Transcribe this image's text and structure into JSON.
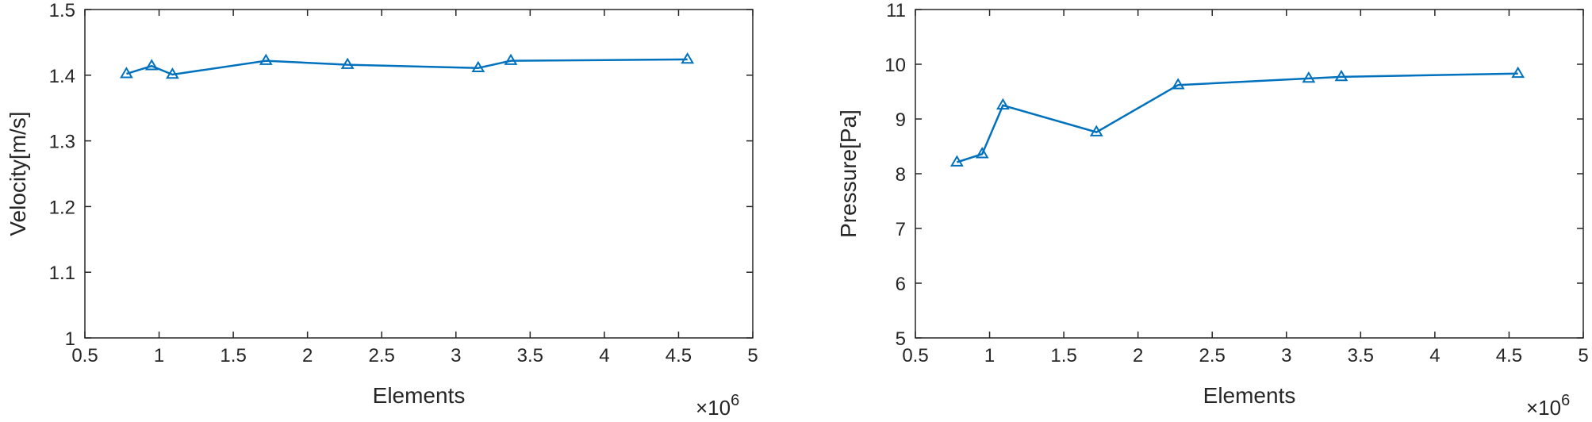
{
  "chart_data": [
    {
      "type": "line",
      "title": "",
      "xlabel": "Elements",
      "ylabel": "Velocity[m/s]",
      "x_multiplier_label": "×10",
      "x_multiplier_exponent": "6",
      "xlim": [
        0.5,
        5
      ],
      "ylim": [
        1,
        1.5
      ],
      "xticks": [
        0.5,
        1,
        1.5,
        2,
        2.5,
        3,
        3.5,
        4,
        4.5,
        5
      ],
      "xtick_labels": [
        "0.5",
        "1",
        "1.5",
        "2",
        "2.5",
        "3",
        "3.5",
        "4",
        "4.5",
        "5"
      ],
      "yticks": [
        1,
        1.1,
        1.2,
        1.3,
        1.4,
        1.5
      ],
      "ytick_labels": [
        "1",
        "1.1",
        "1.2",
        "1.3",
        "1.4",
        "1.5"
      ],
      "grid": false,
      "marker": "triangle",
      "color": "#0072BD",
      "series": [
        {
          "x": [
            0.78,
            0.95,
            1.09,
            1.72,
            2.27,
            3.15,
            3.37,
            4.56
          ],
          "y": [
            1.402,
            1.414,
            1.401,
            1.422,
            1.416,
            1.411,
            1.422,
            1.424
          ]
        }
      ]
    },
    {
      "type": "line",
      "title": "",
      "xlabel": "Elements",
      "ylabel": "Pressure[Pa]",
      "x_multiplier_label": "×10",
      "x_multiplier_exponent": "6",
      "xlim": [
        0.5,
        5
      ],
      "ylim": [
        5,
        11
      ],
      "xticks": [
        0.5,
        1,
        1.5,
        2,
        2.5,
        3,
        3.5,
        4,
        4.5,
        5
      ],
      "xtick_labels": [
        "0.5",
        "1",
        "1.5",
        "2",
        "2.5",
        "3",
        "3.5",
        "4",
        "4.5",
        "5"
      ],
      "yticks": [
        5,
        6,
        7,
        8,
        9,
        10,
        11
      ],
      "ytick_labels": [
        "5",
        "6",
        "7",
        "8",
        "9",
        "10",
        "11"
      ],
      "grid": false,
      "marker": "triangle",
      "color": "#0072BD",
      "series": [
        {
          "x": [
            0.78,
            0.95,
            1.09,
            1.72,
            2.27,
            3.15,
            3.37,
            4.56
          ],
          "y": [
            8.21,
            8.36,
            9.25,
            8.76,
            9.62,
            9.74,
            9.77,
            9.83
          ]
        }
      ]
    }
  ]
}
